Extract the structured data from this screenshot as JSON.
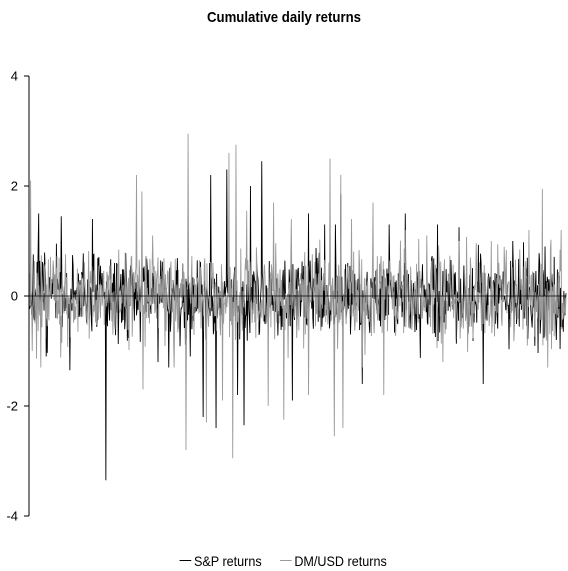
{
  "chart_data": {
    "type": "line",
    "title": "Cumulative daily returns",
    "xlabel": "",
    "ylabel": "",
    "ylim": [
      -4,
      4
    ],
    "yticks": [
      4,
      2,
      0,
      -2,
      -4
    ],
    "x_range": [
      0,
      999
    ],
    "grid": false,
    "zero_line": true,
    "legend_position": "bottom-center",
    "series": [
      {
        "name": "S&P returns",
        "color": "#000000",
        "seed": 7,
        "base_std": 0.52,
        "events": [
          {
            "x": 18,
            "y": 1.5
          },
          {
            "x": 32,
            "y": -1.1
          },
          {
            "x": 60,
            "y": 1.45
          },
          {
            "x": 76,
            "y": -1.35
          },
          {
            "x": 118,
            "y": 1.4
          },
          {
            "x": 143,
            "y": -3.35
          },
          {
            "x": 240,
            "y": -1.2
          },
          {
            "x": 260,
            "y": -1.3
          },
          {
            "x": 300,
            "y": -1.1
          },
          {
            "x": 324,
            "y": -2.2
          },
          {
            "x": 338,
            "y": 2.2
          },
          {
            "x": 348,
            "y": -2.4
          },
          {
            "x": 368,
            "y": 2.3
          },
          {
            "x": 388,
            "y": -1.8
          },
          {
            "x": 400,
            "y": -2.35
          },
          {
            "x": 412,
            "y": 2.0
          },
          {
            "x": 433,
            "y": 2.45
          },
          {
            "x": 490,
            "y": -1.9
          },
          {
            "x": 520,
            "y": 1.5
          },
          {
            "x": 550,
            "y": 1.3
          },
          {
            "x": 570,
            "y": 1.3
          },
          {
            "x": 580,
            "y": 1.85
          },
          {
            "x": 620,
            "y": -1.6
          },
          {
            "x": 670,
            "y": 1.3
          },
          {
            "x": 700,
            "y": 1.5
          },
          {
            "x": 760,
            "y": 1.3
          },
          {
            "x": 800,
            "y": 1.25
          },
          {
            "x": 845,
            "y": -1.6
          },
          {
            "x": 900,
            "y": 1.0
          },
          {
            "x": 960,
            "y": 0.9
          }
        ]
      },
      {
        "name": "DM/USD returns",
        "color": "#9a9a9a",
        "seed": 21,
        "base_std": 0.58,
        "events": [
          {
            "x": 3,
            "y": 2.1
          },
          {
            "x": 6,
            "y": -1.0
          },
          {
            "x": 22,
            "y": -1.3
          },
          {
            "x": 200,
            "y": 2.2
          },
          {
            "x": 210,
            "y": 1.9
          },
          {
            "x": 212,
            "y": -1.7
          },
          {
            "x": 230,
            "y": 1.1
          },
          {
            "x": 270,
            "y": -1.3
          },
          {
            "x": 292,
            "y": -2.8
          },
          {
            "x": 296,
            "y": 2.95
          },
          {
            "x": 330,
            "y": -2.3
          },
          {
            "x": 360,
            "y": -1.9
          },
          {
            "x": 372,
            "y": 2.6
          },
          {
            "x": 379,
            "y": -2.95
          },
          {
            "x": 385,
            "y": 2.75
          },
          {
            "x": 405,
            "y": 1.55
          },
          {
            "x": 445,
            "y": -2.0
          },
          {
            "x": 455,
            "y": 1.7
          },
          {
            "x": 474,
            "y": -2.25
          },
          {
            "x": 488,
            "y": 1.4
          },
          {
            "x": 520,
            "y": -1.8
          },
          {
            "x": 560,
            "y": 2.5
          },
          {
            "x": 568,
            "y": -2.55
          },
          {
            "x": 580,
            "y": 2.2
          },
          {
            "x": 584,
            "y": -2.4
          },
          {
            "x": 600,
            "y": 1.4
          },
          {
            "x": 620,
            "y": -1.3
          },
          {
            "x": 640,
            "y": 1.7
          },
          {
            "x": 660,
            "y": -1.8
          },
          {
            "x": 700,
            "y": 1.2
          },
          {
            "x": 740,
            "y": 1.1
          },
          {
            "x": 770,
            "y": -1.2
          },
          {
            "x": 800,
            "y": 1.0
          },
          {
            "x": 860,
            "y": 1.0
          },
          {
            "x": 930,
            "y": 1.2
          },
          {
            "x": 955,
            "y": 1.95
          },
          {
            "x": 965,
            "y": -1.3
          },
          {
            "x": 990,
            "y": 1.2
          }
        ]
      }
    ]
  }
}
